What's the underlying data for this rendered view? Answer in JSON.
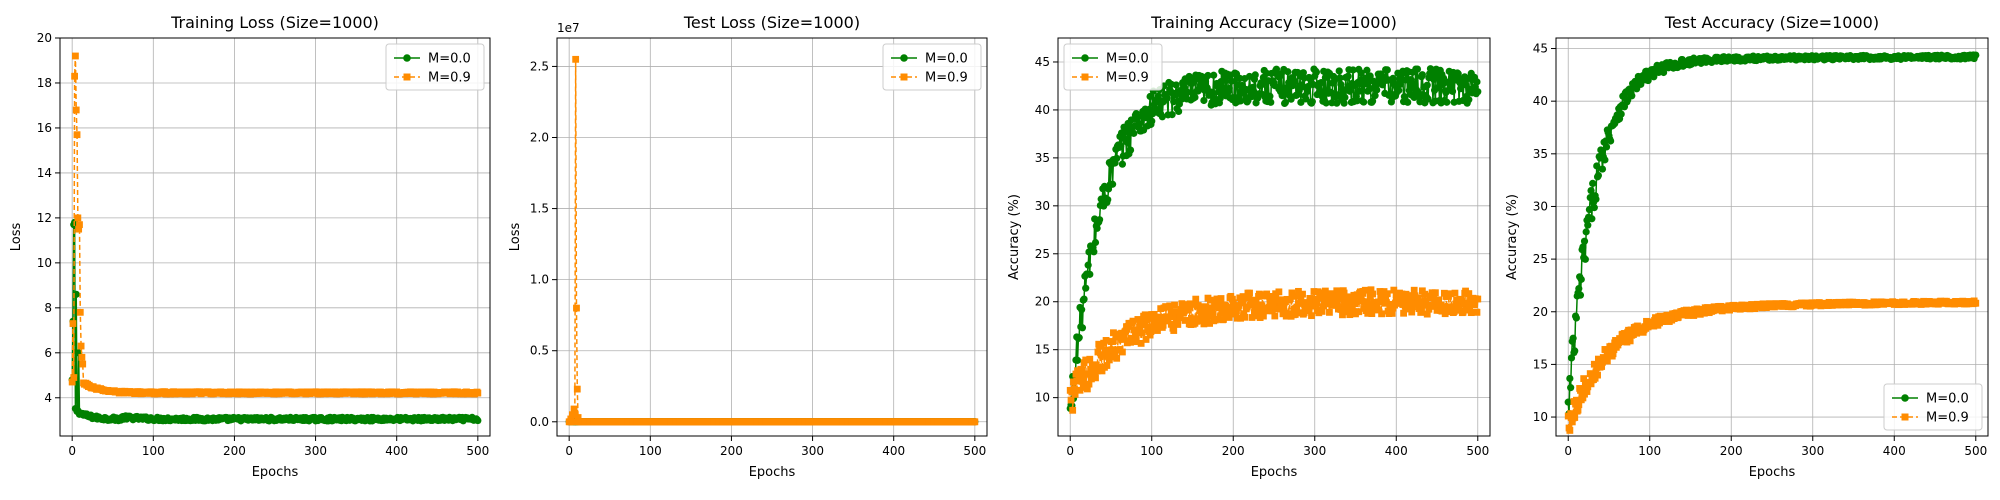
{
  "colors": {
    "m0": "#008000",
    "m9": "#ff8c00",
    "grid": "#b0b0b0"
  },
  "chart_data": [
    {
      "type": "line",
      "title": "Training Loss (Size=1000)",
      "xlabel": "Epochs",
      "ylabel": "Loss",
      "xlim": [
        -15,
        515
      ],
      "ylim": [
        2.3,
        20
      ],
      "xticks": [
        0,
        100,
        200,
        300,
        400,
        500
      ],
      "yticks": [
        4,
        6,
        8,
        10,
        12,
        14,
        16,
        18,
        20
      ],
      "ytick_labels": [
        "4",
        "6",
        "8",
        "10",
        "12",
        "14",
        "16",
        "18",
        "20"
      ],
      "grid": true,
      "legend_loc": "top-right",
      "series": [
        {
          "name": "M=0.0",
          "color": "#008000",
          "marker": "circle",
          "linestyle": "solid",
          "kind": "decay",
          "start": 11.8,
          "peaks": [
            [
              3,
              11.8
            ],
            [
              5,
              8.6
            ],
            [
              8,
              6.0
            ]
          ],
          "tau": 14,
          "asym": 3.05,
          "noise": 0.08,
          "tail_start": 3.6,
          "mid_drop": 0.35
        },
        {
          "name": "M=0.9",
          "color": "#ff8c00",
          "marker": "square",
          "linestyle": "dashed",
          "kind": "spikes",
          "spikes": [
            [
              1,
              7.3
            ],
            [
              2,
              4.9
            ],
            [
              3,
              18.3
            ],
            [
              4,
              19.2
            ],
            [
              5,
              16.8
            ],
            [
              6,
              15.7
            ],
            [
              7,
              12.0
            ],
            [
              8,
              11.5
            ],
            [
              9,
              11.7
            ],
            [
              10,
              7.8
            ],
            [
              11,
              6.3
            ],
            [
              12,
              5.8
            ],
            [
              13,
              5.5
            ]
          ],
          "tau": 18,
          "asym": 4.22,
          "noise": 0.05,
          "tail_start": 5.2
        }
      ]
    },
    {
      "type": "line",
      "title": "Test Loss (Size=1000)",
      "xlabel": "Epochs",
      "ylabel": "Loss",
      "sci_label": "1e7",
      "xlim": [
        -15,
        515
      ],
      "ylim": [
        -0.1,
        2.7
      ],
      "xticks": [
        0,
        100,
        200,
        300,
        400,
        500
      ],
      "yticks": [
        0.0,
        0.5,
        1.0,
        1.5,
        2.0,
        2.5
      ],
      "ytick_labels": [
        "0.0",
        "0.5",
        "1.0",
        "1.5",
        "2.0",
        "2.5"
      ],
      "grid": true,
      "legend_loc": "top-right",
      "series": [
        {
          "name": "M=0.0",
          "color": "#008000",
          "marker": "circle",
          "linestyle": "solid",
          "kind": "flat",
          "level": 0.0
        },
        {
          "name": "M=0.9",
          "color": "#ff8c00",
          "marker": "square",
          "linestyle": "dashed",
          "kind": "flatspikes",
          "level": 0.0,
          "spikes": [
            [
              2,
              0.02
            ],
            [
              4,
              0.05
            ],
            [
              6,
              0.09
            ],
            [
              7,
              0.06
            ],
            [
              8,
              2.55
            ],
            [
              9,
              0.8
            ],
            [
              10,
              0.23
            ],
            [
              11,
              0.03
            ]
          ]
        }
      ]
    },
    {
      "type": "line",
      "title": "Training Accuracy (Size=1000)",
      "xlabel": "Epochs",
      "ylabel": "Accuracy (%)",
      "xlim": [
        -15,
        515
      ],
      "ylim": [
        6,
        47.5
      ],
      "xticks": [
        0,
        100,
        200,
        300,
        400,
        500
      ],
      "yticks": [
        10,
        15,
        20,
        25,
        30,
        35,
        40,
        45
      ],
      "ytick_labels": [
        "10",
        "15",
        "20",
        "25",
        "30",
        "35",
        "40",
        "45"
      ],
      "grid": true,
      "legend_loc": "top-left",
      "series": [
        {
          "name": "M=0.0",
          "color": "#008000",
          "marker": "circle",
          "linestyle": "solid",
          "kind": "growth",
          "start": 8.0,
          "asym": 42.5,
          "tau": 38,
          "noise": 1.8,
          "early_noise": 2.2
        },
        {
          "name": "M=0.9",
          "color": "#ff8c00",
          "marker": "square",
          "linestyle": "dashed",
          "kind": "growth",
          "start": 10.0,
          "asym": 20.0,
          "tau": 70,
          "noise": 1.3,
          "early_noise": 1.8
        }
      ]
    },
    {
      "type": "line",
      "title": "Test Accuracy (Size=1000)",
      "xlabel": "Epochs",
      "ylabel": "Accuracy (%)",
      "xlim": [
        -15,
        515
      ],
      "ylim": [
        8.2,
        46
      ],
      "xticks": [
        0,
        100,
        200,
        300,
        400,
        500
      ],
      "yticks": [
        10,
        15,
        20,
        25,
        30,
        35,
        40,
        45
      ],
      "ytick_labels": [
        "10",
        "15",
        "20",
        "25",
        "30",
        "35",
        "40",
        "45"
      ],
      "grid": true,
      "legend_loc": "bottom-right",
      "series": [
        {
          "name": "M=0.0",
          "color": "#008000",
          "marker": "circle",
          "linestyle": "solid",
          "kind": "growth",
          "start": 10.0,
          "asym": 44.0,
          "tau": 32,
          "noise": 0.2,
          "early_noise": 3.0,
          "drift": 0.0004
        },
        {
          "name": "M=0.9",
          "color": "#ff8c00",
          "marker": "square",
          "linestyle": "dashed",
          "kind": "growth",
          "start": 9.5,
          "asym": 20.5,
          "tau": 55,
          "noise": 0.15,
          "early_noise": 1.2,
          "drift": 0.0008
        }
      ]
    }
  ]
}
